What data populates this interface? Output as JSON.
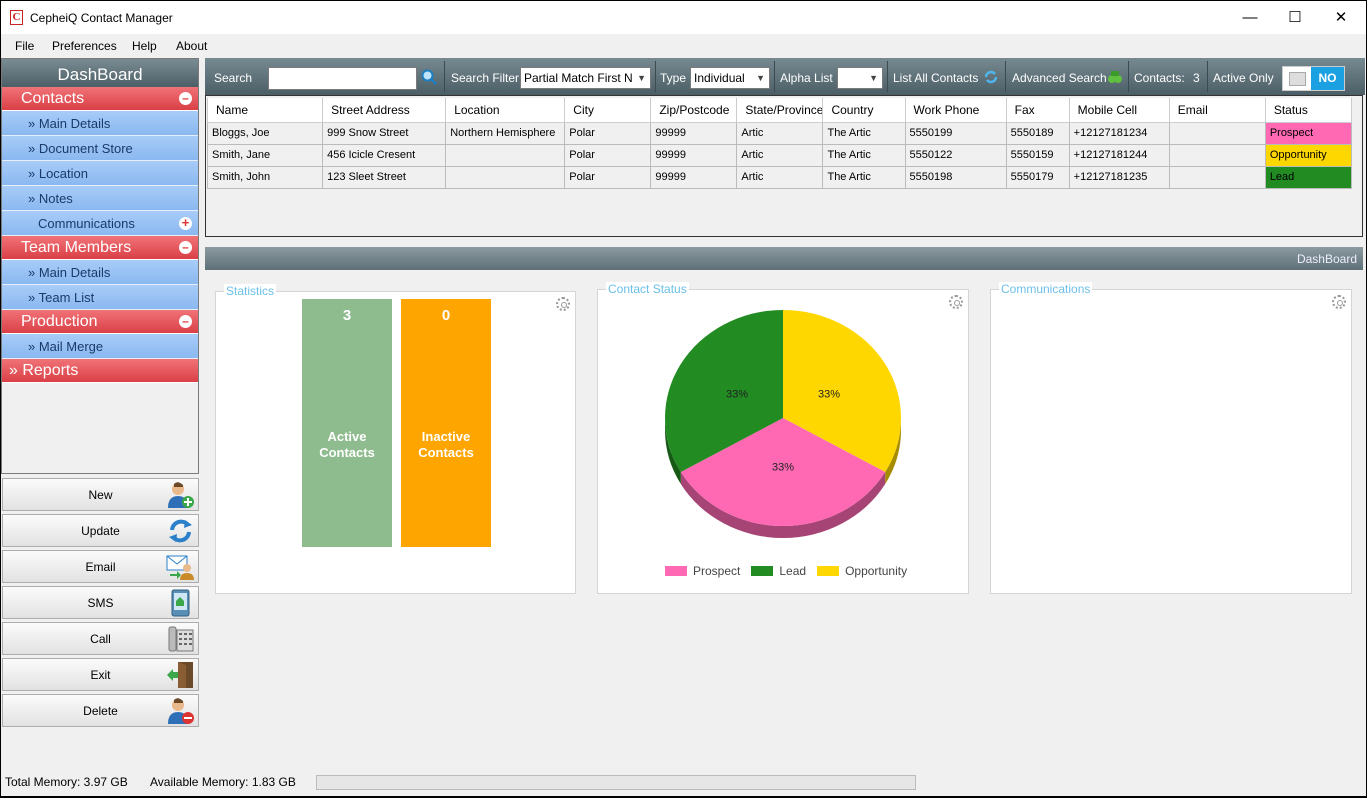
{
  "window": {
    "title": "CepheiQ Contact Manager",
    "icon_letter": "C"
  },
  "menu": [
    "File",
    "Preferences",
    "Help",
    "About"
  ],
  "sidebar": {
    "header": "DashBoard",
    "sections": [
      {
        "label": "Contacts",
        "items": [
          "» Main Details",
          "» Document Store",
          "» Location",
          "» Notes",
          "Communications"
        ]
      },
      {
        "label": "Team Members",
        "items": [
          "» Main Details",
          "» Team List"
        ]
      },
      {
        "label": "Production",
        "items": [
          "» Mail Merge"
        ]
      },
      {
        "label": "» Reports"
      }
    ]
  },
  "actions": [
    {
      "label": "New",
      "icon": "add-user-icon"
    },
    {
      "label": "Update",
      "icon": "refresh-icon"
    },
    {
      "label": "Email",
      "icon": "email-icon"
    },
    {
      "label": "SMS",
      "icon": "phone-icon"
    },
    {
      "label": "Call",
      "icon": "desk-phone-icon"
    },
    {
      "label": "Exit",
      "icon": "exit-door-icon"
    },
    {
      "label": "Delete",
      "icon": "delete-user-icon"
    }
  ],
  "toolbar": {
    "search_label": "Search",
    "search_value": "",
    "filter_label": "Search Filter",
    "filter_value": "Partial Match First N",
    "type_label": "Type",
    "type_value": "Individual",
    "alpha_label": "Alpha List",
    "alpha_value": "",
    "list_all": "List All Contacts",
    "advanced": "Advanced Search",
    "contacts_label": "Contacts:",
    "contacts_count": "3",
    "active_only": "Active Only",
    "toggle_value": "NO"
  },
  "table": {
    "columns": [
      "Name",
      "Street Address",
      "Location",
      "City",
      "Zip/Postcode",
      "State/Province",
      "Country",
      "Work Phone",
      "Fax",
      "Mobile Cell",
      "Email",
      "Status"
    ],
    "rows": [
      [
        "Bloggs, Joe",
        "999 Snow Street",
        "Northern Hemisphere",
        "Polar",
        "99999",
        "Artic",
        "The Artic",
        "5550199",
        "5550189",
        "+12127181234",
        "",
        "Prospect"
      ],
      [
        "Smith, Jane",
        "456 Icicle Cresent",
        "",
        "Polar",
        "99999",
        "Artic",
        "The Artic",
        "5550122",
        "5550159",
        "+12127181244",
        "",
        "Opportunity"
      ],
      [
        "Smith, John",
        "123 Sleet Street",
        "",
        "Polar",
        "99999",
        "Artic",
        "The Artic",
        "5550198",
        "5550179",
        "+12127181235",
        "",
        "Lead"
      ]
    ],
    "status_colors": {
      "Prospect": "#ff69b4",
      "Opportunity": "#ffd700",
      "Lead": "#228b22"
    }
  },
  "dashboard": {
    "bar_label": "DashBoard",
    "statistics": {
      "title": "Statistics",
      "active_count": "3",
      "active_label": "Active Contacts",
      "inactive_count": "0",
      "inactive_label": "Inactive Contacts",
      "active_color": "#8fbc8f",
      "inactive_color": "#ffa500"
    },
    "contact_status": {
      "title": "Contact Status"
    },
    "communications": {
      "title": "Communications"
    }
  },
  "chart_data": {
    "type": "pie",
    "labels": [
      "Prospect",
      "Lead",
      "Opportunity"
    ],
    "values": [
      33,
      33,
      33
    ],
    "data_labels": [
      "33%",
      "33%",
      "33%"
    ],
    "colors": [
      "#ff69b4",
      "#228b22",
      "#ffd700"
    ],
    "legend": "bottom"
  },
  "status": {
    "total_memory": "Total Memory: 3.97 GB",
    "available_memory": "Available Memory: 1.83 GB"
  }
}
